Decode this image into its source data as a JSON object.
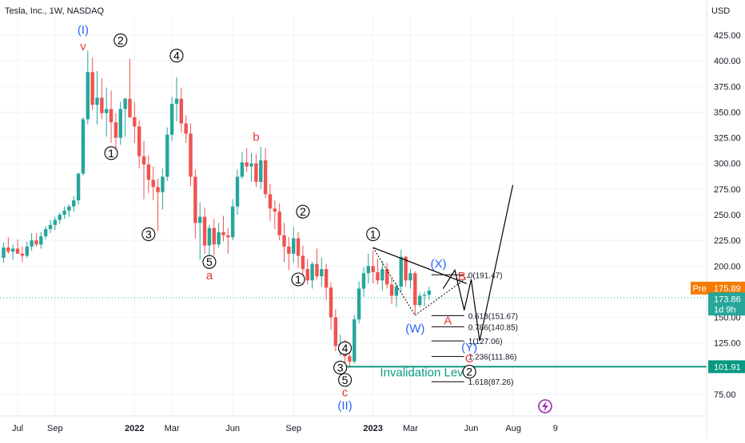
{
  "chart_data": {
    "type": "candlestick",
    "title": "Tesla, Inc., 1W, NASDAQ",
    "currency_label": "USD",
    "colors": {
      "up": "#26a69a",
      "down": "#ef5350",
      "grid": "#f0f3fa",
      "invalidation": "#089981",
      "pre": "#f57c00",
      "last": "#26a69a",
      "blue_label": "#2962ff",
      "red_label": "#e53935"
    },
    "ylim": [
      62,
      445
    ],
    "y_ticks": [
      {
        "v": 425,
        "t": "425.00"
      },
      {
        "v": 400,
        "t": "400.00"
      },
      {
        "v": 375,
        "t": "375.00"
      },
      {
        "v": 350,
        "t": "350.00"
      },
      {
        "v": 325,
        "t": "325.00"
      },
      {
        "v": 300,
        "t": "300.00"
      },
      {
        "v": 275,
        "t": "275.00"
      },
      {
        "v": 250,
        "t": "250.00"
      },
      {
        "v": 225,
        "t": "225.00"
      },
      {
        "v": 200,
        "t": "200.00"
      },
      {
        "v": 150,
        "t": "150.00"
      },
      {
        "v": 125,
        "t": "125.00"
      },
      {
        "v": 75,
        "t": "75.00"
      }
    ],
    "x_ticks": [
      {
        "i": 3,
        "t": "Jul"
      },
      {
        "i": 11,
        "t": "Sep"
      },
      {
        "i": 28,
        "t": "2022"
      },
      {
        "i": 36,
        "t": "Mar"
      },
      {
        "i": 49,
        "t": "Jun"
      },
      {
        "i": 62,
        "t": "Sep"
      },
      {
        "i": 79,
        "t": "2023"
      },
      {
        "i": 87,
        "t": "Mar"
      },
      {
        "i": 100,
        "t": "Jun"
      },
      {
        "i": 109,
        "t": "Aug"
      },
      {
        "i": 118,
        "t": "9"
      }
    ],
    "ohlc": [
      [
        208,
        223,
        203,
        218
      ],
      [
        218,
        228,
        212,
        214
      ],
      [
        214,
        221,
        206,
        217
      ],
      [
        217,
        226,
        213,
        212
      ],
      [
        212,
        219,
        204,
        210
      ],
      [
        210,
        224,
        208,
        219
      ],
      [
        219,
        232,
        215,
        225
      ],
      [
        225,
        232,
        219,
        221
      ],
      [
        221,
        233,
        217,
        229
      ],
      [
        229,
        239,
        226,
        236
      ],
      [
        236,
        245,
        232,
        240
      ],
      [
        240,
        248,
        235,
        245
      ],
      [
        245,
        252,
        241,
        250
      ],
      [
        250,
        258,
        246,
        254
      ],
      [
        254,
        260,
        248,
        258
      ],
      [
        258,
        268,
        253,
        264
      ],
      [
        264,
        291,
        260,
        290
      ],
      [
        290,
        345,
        288,
        343
      ],
      [
        343,
        410,
        338,
        389
      ],
      [
        389,
        403,
        352,
        357
      ],
      [
        357,
        390,
        338,
        364
      ],
      [
        364,
        383,
        343,
        349
      ],
      [
        349,
        374,
        326,
        353
      ],
      [
        353,
        371,
        320,
        340
      ],
      [
        340,
        349,
        312,
        325
      ],
      [
        325,
        360,
        318,
        353
      ],
      [
        353,
        364,
        326,
        363
      ],
      [
        363,
        402,
        344,
        345
      ],
      [
        345,
        360,
        320,
        336
      ],
      [
        336,
        342,
        295,
        307
      ],
      [
        307,
        322,
        265,
        299
      ],
      [
        299,
        308,
        271,
        284
      ],
      [
        284,
        297,
        264,
        277
      ],
      [
        277,
        285,
        234,
        272
      ],
      [
        272,
        295,
        255,
        287
      ],
      [
        287,
        335,
        283,
        328
      ],
      [
        328,
        365,
        322,
        358
      ],
      [
        358,
        384,
        341,
        363
      ],
      [
        363,
        374,
        330,
        339
      ],
      [
        339,
        347,
        320,
        329
      ],
      [
        329,
        339,
        278,
        287
      ],
      [
        287,
        294,
        227,
        242
      ],
      [
        242,
        262,
        206,
        248
      ],
      [
        248,
        257,
        212,
        220
      ],
      [
        220,
        240,
        210,
        237
      ],
      [
        237,
        246,
        210,
        221
      ],
      [
        221,
        242,
        218,
        233
      ],
      [
        233,
        249,
        224,
        230
      ],
      [
        230,
        237,
        212,
        228
      ],
      [
        228,
        265,
        225,
        258
      ],
      [
        258,
        294,
        250,
        287
      ],
      [
        287,
        311,
        285,
        301
      ],
      [
        301,
        315,
        292,
        297
      ],
      [
        297,
        310,
        282,
        300
      ],
      [
        300,
        309,
        277,
        282
      ],
      [
        282,
        316,
        275,
        303
      ],
      [
        303,
        315,
        266,
        270
      ],
      [
        270,
        280,
        244,
        256
      ],
      [
        256,
        264,
        236,
        253
      ],
      [
        253,
        261,
        225,
        230
      ],
      [
        230,
        242,
        204,
        219
      ],
      [
        219,
        228,
        196,
        212
      ],
      [
        212,
        238,
        203,
        227
      ],
      [
        227,
        233,
        198,
        210
      ],
      [
        210,
        220,
        181,
        197
      ],
      [
        197,
        207,
        182,
        186
      ],
      [
        186,
        204,
        178,
        202
      ],
      [
        202,
        217,
        187,
        190
      ],
      [
        190,
        208,
        180,
        197
      ],
      [
        197,
        202,
        167,
        179
      ],
      [
        179,
        184,
        138,
        150
      ],
      [
        150,
        158,
        117,
        122
      ],
      [
        122,
        133,
        112,
        124
      ],
      [
        124,
        128,
        104,
        112
      ],
      [
        112,
        120,
        101,
        107
      ],
      [
        107,
        152,
        105,
        148
      ],
      [
        148,
        185,
        144,
        178
      ],
      [
        178,
        199,
        170,
        193
      ],
      [
        193,
        212,
        183,
        200
      ],
      [
        200,
        215,
        183,
        194
      ],
      [
        194,
        207,
        182,
        186
      ],
      [
        186,
        205,
        176,
        197
      ],
      [
        197,
        203,
        178,
        182
      ],
      [
        182,
        188,
        163,
        171
      ],
      [
        171,
        183,
        160,
        180
      ],
      [
        180,
        216,
        175,
        209
      ],
      [
        209,
        210,
        180,
        186
      ],
      [
        186,
        197,
        178,
        193
      ],
      [
        193,
        195,
        153,
        162
      ],
      [
        162,
        174,
        160,
        171
      ],
      [
        171,
        175,
        161,
        172
      ],
      [
        172,
        180,
        167,
        176
      ]
    ],
    "price_labels": [
      {
        "v": 178.5,
        "t": "175.89",
        "tag": "Pre"
      },
      {
        "v": 168.0,
        "t": "173.86"
      },
      {
        "v": 158.0,
        "t": "1d 9h"
      },
      {
        "v": 101.91,
        "t": "101.91"
      }
    ],
    "invalidation": {
      "v": 101.91,
      "label": "Invalidation Level"
    },
    "fib": {
      "levels": [
        {
          "v": 191.47,
          "t": "0(191.47)"
        },
        {
          "v": 151.67,
          "t": "0.618(151.67)"
        },
        {
          "v": 140.85,
          "t": "0.786(140.85)"
        },
        {
          "v": 127.06,
          "t": "1(127.06)"
        },
        {
          "v": 111.86,
          "t": "1.236(111.86)"
        },
        {
          "v": 87.26,
          "t": "1.618(87.26)"
        }
      ]
    },
    "wave_labels": [
      {
        "i": 17,
        "v": 430,
        "t": "(I)",
        "color": "blue"
      },
      {
        "i": 17,
        "v": 414,
        "t": "v",
        "color": "red"
      },
      {
        "i": 25,
        "v": 420,
        "t": "2",
        "circle": true
      },
      {
        "i": 37,
        "v": 405,
        "t": "4",
        "circle": true
      },
      {
        "i": 23,
        "v": 310,
        "t": "1",
        "circle": true
      },
      {
        "i": 31,
        "v": 231,
        "t": "3",
        "circle": true
      },
      {
        "i": 44,
        "v": 204,
        "t": "5",
        "circle": true
      },
      {
        "i": 44,
        "v": 191,
        "t": "a",
        "color": "red"
      },
      {
        "i": 54,
        "v": 326,
        "t": "b",
        "color": "red"
      },
      {
        "i": 64,
        "v": 253,
        "t": "2",
        "circle": true
      },
      {
        "i": 63,
        "v": 187,
        "t": "1",
        "circle": true
      },
      {
        "i": 73,
        "v": 120,
        "t": "4",
        "circle": true
      },
      {
        "i": 72,
        "v": 101,
        "t": "3",
        "circle": true
      },
      {
        "i": 73,
        "v": 89,
        "t": "5",
        "circle": true
      },
      {
        "i": 73,
        "v": 77,
        "t": "c",
        "color": "red"
      },
      {
        "i": 73,
        "v": 64,
        "t": "(II)",
        "color": "blue"
      },
      {
        "i": 79,
        "v": 231,
        "t": "1",
        "circle": true
      },
      {
        "i": 93,
        "v": 202,
        "t": "(X)",
        "color": "blue"
      },
      {
        "i": 98,
        "v": 190,
        "t": "B",
        "color": "red"
      },
      {
        "i": 88,
        "v": 139,
        "t": "(W)",
        "color": "blue"
      },
      {
        "i": 95,
        "v": 147,
        "t": "A",
        "color": "red"
      },
      {
        "i": 99.6,
        "v": 121,
        "t": "(Y)",
        "color": "blue"
      },
      {
        "i": 99.6,
        "v": 110,
        "t": "C",
        "color": "red"
      },
      {
        "i": 99.6,
        "v": 97,
        "t": "2",
        "circle": true
      }
    ]
  }
}
